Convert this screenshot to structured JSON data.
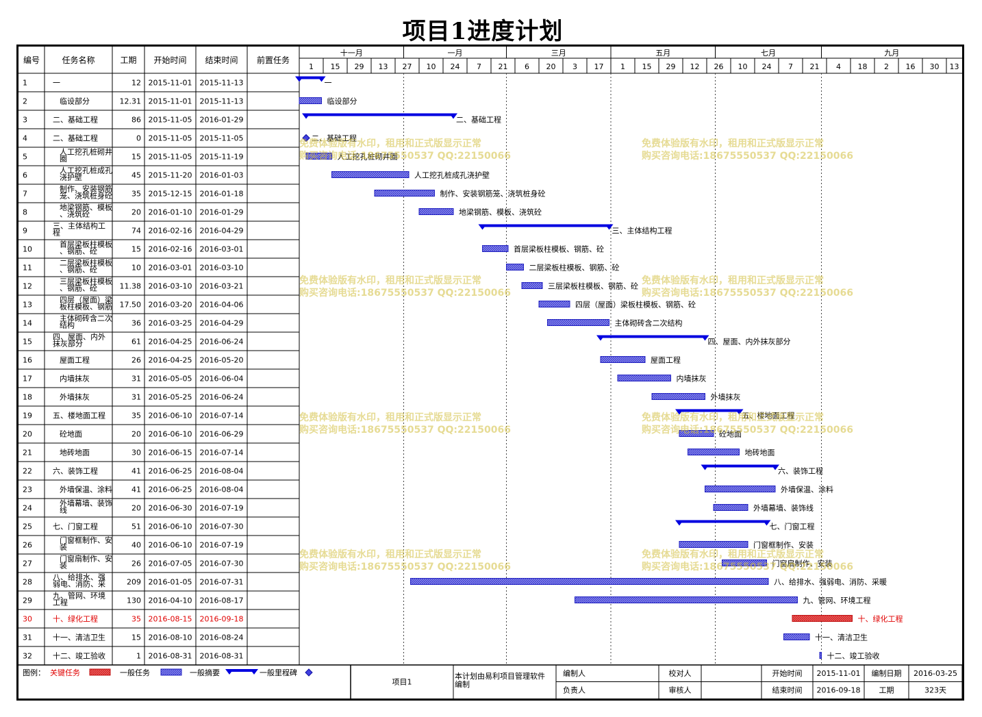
{
  "title": "项目1进度计划",
  "columns": [
    "编号",
    "任务名称",
    "工期",
    "开始时间",
    "结束时间",
    "前置任务"
  ],
  "months": [
    {
      "label": "十一月",
      "date": "2015-11-01"
    },
    {
      "label": "一月",
      "date": "2016-01-01"
    },
    {
      "label": "三月",
      "date": "2016-03-01"
    },
    {
      "label": "五月",
      "date": "2016-05-01"
    },
    {
      "label": "七月",
      "date": "2016-07-01"
    },
    {
      "label": "九月",
      "date": "2016-09-01"
    }
  ],
  "timescale_start": "2015-11-01",
  "colors": {
    "critical": "#e03030",
    "general": "#3a3adc",
    "summary": "#0000e0",
    "milestone": "#2020c0",
    "critical_text": "#e00000"
  },
  "chart_data": {
    "type": "gantt",
    "tasks": [
      {
        "id": "1",
        "name": "一",
        "duration": "12",
        "start": "2015-11-01",
        "end": "2015-11-13",
        "kind": "summary",
        "label": "一"
      },
      {
        "id": "2",
        "name": "临设部分",
        "duration": "12.31",
        "start": "2015-11-01",
        "end": "2015-11-13",
        "kind": "task",
        "label": "临设部分"
      },
      {
        "id": "3",
        "name": "二、基础工程",
        "duration": "86",
        "start": "2015-11-05",
        "end": "2016-01-29",
        "kind": "summary",
        "label": "二、基础工程"
      },
      {
        "id": "4",
        "name": "二、基础工程",
        "duration": "0",
        "start": "2015-11-05",
        "end": "2015-11-05",
        "kind": "milestone",
        "label": "二、基础工程"
      },
      {
        "id": "5",
        "name": "人工挖孔桩砌井圈",
        "duration": "15",
        "start": "2015-11-05",
        "end": "2015-11-19",
        "kind": "task",
        "label": "人工挖孔桩砌井圈"
      },
      {
        "id": "6",
        "name": "人工挖孔桩成孔浇护壁",
        "duration": "45",
        "start": "2015-11-20",
        "end": "2016-01-03",
        "kind": "task",
        "label": "人工挖孔桩成孔浇护壁"
      },
      {
        "id": "7",
        "name": "制作、安装钢筋笼、浇筑桩身砼",
        "duration": "35",
        "start": "2015-12-15",
        "end": "2016-01-18",
        "kind": "task",
        "label": "制作、安装钢筋笼、浇筑桩身砼"
      },
      {
        "id": "8",
        "name": "地梁钢筋、模板、浇筑砼",
        "duration": "20",
        "start": "2016-01-10",
        "end": "2016-01-29",
        "kind": "task",
        "label": "地梁钢筋、模板、浇筑砼"
      },
      {
        "id": "9",
        "name": "三、主体结构工程",
        "duration": "74",
        "start": "2016-02-16",
        "end": "2016-04-29",
        "kind": "summary",
        "label": "三、主体结构工程"
      },
      {
        "id": "10",
        "name": "首层梁板柱模板、钢筋、砼",
        "duration": "15",
        "start": "2016-02-16",
        "end": "2016-03-01",
        "kind": "task",
        "label": "首层梁板柱模板、钢筋、砼"
      },
      {
        "id": "11",
        "name": "二层梁板柱模板、钢筋、砼",
        "duration": "10",
        "start": "2016-03-01",
        "end": "2016-03-10",
        "kind": "task",
        "label": "二层梁板柱模板、钢筋、砼"
      },
      {
        "id": "12",
        "name": "三层梁板柱模板、钢筋、砼",
        "duration": "11.38",
        "start": "2016-03-10",
        "end": "2016-03-21",
        "kind": "task",
        "label": "三层梁板柱模板、钢筋、砼"
      },
      {
        "id": "13",
        "name": "四层（屋面）梁板柱模板、钢筋、砼",
        "duration": "17.50",
        "start": "2016-03-20",
        "end": "2016-04-06",
        "kind": "task",
        "label": "四层（屋面）梁板柱模板、钢筋、砼"
      },
      {
        "id": "14",
        "name": "主体砌砖含二次结构",
        "duration": "36",
        "start": "2016-03-25",
        "end": "2016-04-29",
        "kind": "task",
        "label": "主体砌砖含二次结构"
      },
      {
        "id": "15",
        "name": "四、屋面、内外抹灰部分",
        "duration": "61",
        "start": "2016-04-25",
        "end": "2016-06-24",
        "kind": "summary",
        "label": "四、屋面、内外抹灰部分"
      },
      {
        "id": "16",
        "name": "屋面工程",
        "duration": "26",
        "start": "2016-04-25",
        "end": "2016-05-20",
        "kind": "task",
        "label": "屋面工程"
      },
      {
        "id": "17",
        "name": "内墙抹灰",
        "duration": "31",
        "start": "2016-05-05",
        "end": "2016-06-04",
        "kind": "task",
        "label": "内墙抹灰"
      },
      {
        "id": "18",
        "name": "外墙抹灰",
        "duration": "31",
        "start": "2016-05-25",
        "end": "2016-06-24",
        "kind": "task",
        "label": "外墙抹灰"
      },
      {
        "id": "19",
        "name": "五、楼地面工程",
        "duration": "35",
        "start": "2016-06-10",
        "end": "2016-07-14",
        "kind": "summary",
        "label": "五、楼地面工程"
      },
      {
        "id": "20",
        "name": "砼地面",
        "duration": "20",
        "start": "2016-06-10",
        "end": "2016-06-29",
        "kind": "task",
        "label": "砼地面"
      },
      {
        "id": "21",
        "name": "地砖地面",
        "duration": "30",
        "start": "2016-06-15",
        "end": "2016-07-14",
        "kind": "task",
        "label": "地砖地面"
      },
      {
        "id": "22",
        "name": "六、装饰工程",
        "duration": "41",
        "start": "2016-06-25",
        "end": "2016-08-04",
        "kind": "summary",
        "label": "六、装饰工程"
      },
      {
        "id": "23",
        "name": "外墙保温、涂料",
        "duration": "41",
        "start": "2016-06-25",
        "end": "2016-08-04",
        "kind": "task",
        "label": "外墙保温、涂料"
      },
      {
        "id": "24",
        "name": "外墙幕墙、装饰线",
        "duration": "20",
        "start": "2016-06-30",
        "end": "2016-07-19",
        "kind": "task",
        "label": "外墙幕墙、装饰线"
      },
      {
        "id": "25",
        "name": "七、门窗工程",
        "duration": "51",
        "start": "2016-06-10",
        "end": "2016-07-30",
        "kind": "summary",
        "label": "七、门窗工程"
      },
      {
        "id": "26",
        "name": "门窗框制作、安装",
        "duration": "40",
        "start": "2016-06-10",
        "end": "2016-07-19",
        "kind": "task",
        "label": "门窗框制作、安装"
      },
      {
        "id": "27",
        "name": "门窗扇制作、安装",
        "duration": "26",
        "start": "2016-07-05",
        "end": "2016-07-30",
        "kind": "task",
        "label": "门窗扇制作、安装"
      },
      {
        "id": "28",
        "name": "八、给排水、强弱电、消防、采暖",
        "duration": "209",
        "start": "2016-01-05",
        "end": "2016-07-31",
        "kind": "task",
        "label": "八、给排水、强弱电、消防、采暖"
      },
      {
        "id": "29",
        "name": "九、管网、环境工程",
        "duration": "130",
        "start": "2016-04-10",
        "end": "2016-08-17",
        "kind": "task",
        "label": "九、管网、环境工程"
      },
      {
        "id": "30",
        "name": "十、绿化工程",
        "duration": "35",
        "start": "2016-08-15",
        "end": "2016-09-18",
        "kind": "critical",
        "label": "十、绿化工程"
      },
      {
        "id": "31",
        "name": "十一、清洁卫生",
        "duration": "15",
        "start": "2016-08-10",
        "end": "2016-08-24",
        "kind": "task",
        "label": "十一、清洁卫生"
      },
      {
        "id": "32",
        "name": "十二、竣工验收",
        "duration": "1",
        "start": "2016-08-31",
        "end": "2016-08-31",
        "kind": "task",
        "label": "十二、竣工验收"
      }
    ]
  },
  "legend": {
    "label": "图例：",
    "critical": "关键任务",
    "general": "一般任务",
    "summary": "一般摘要",
    "milestone": "一般里程碑"
  },
  "footer": {
    "project": "项目1",
    "note": "本计划由易利项目管理软件编制",
    "editor_label": "编制人",
    "checker_label": "校对人",
    "owner_label": "负责人",
    "auditor_label": "审核人",
    "start_label": "开始时间",
    "start_value": "2015-11-01",
    "made_label": "编制日期",
    "made_value": "2016-03-25",
    "end_label": "结束时间",
    "end_value": "2016-09-18",
    "duration_label": "工期",
    "duration_value": "323天"
  },
  "watermark": {
    "line1": "免费体验版有水印，租用和正式版显示正常",
    "line2": "购买咨询电话:18675550537 QQ:22150066"
  }
}
